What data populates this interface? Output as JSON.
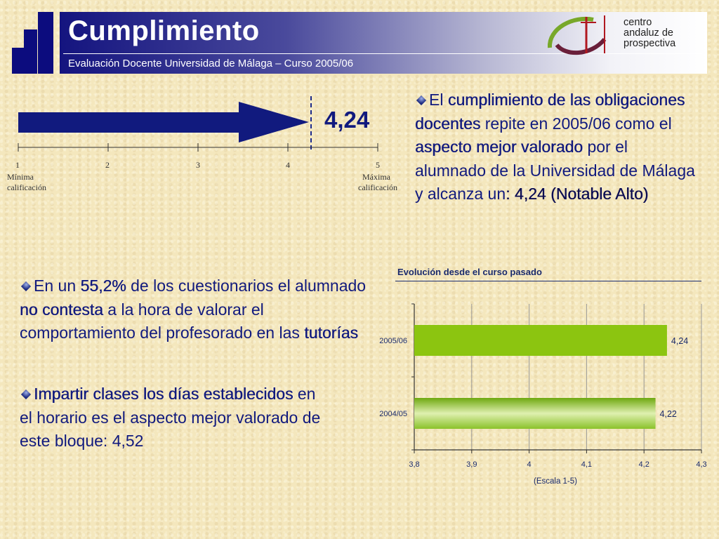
{
  "header": {
    "title": "Cumplimiento",
    "subtitle": "Evaluación Docente Universidad de Málaga – Curso 2005/06",
    "logo_name": "centro-andaluz-de-prospectiva-logo",
    "logo_text": [
      "centro",
      "andaluz de",
      "prospectiva"
    ]
  },
  "scale": {
    "ticks": [
      "1",
      "2",
      "3",
      "4",
      "5"
    ],
    "min_label": [
      "Mínima",
      "calificación"
    ],
    "max_label": [
      "Máxima",
      "calificación"
    ],
    "score": "4,24",
    "score_value": 4.24
  },
  "paragraphs": {
    "right": {
      "t1": "El ",
      "b1": "cumplimiento de las obligaciones docentes",
      "t2": " repite en 2005/06 como el ",
      "b2": "aspecto mejor valorado",
      "t3": " por el alumnado de la Universidad de Málaga y alcanza un",
      "b3": ": 4,24 (Notable Alto)"
    },
    "left1": {
      "t1": "En un ",
      "b1": "55,2%",
      "t2": " de los cuestionarios el alumnado ",
      "b2": "no contesta",
      "t3": " a la hora de valorar el comportamiento del profesorado en las ",
      "b3": "tutorías"
    },
    "left2": {
      "b1": "Impartir clases los días establecidos",
      "t1": " en el horario es el aspecto mejor valorado de este bloque: 4,52"
    }
  },
  "chart_data": {
    "type": "bar",
    "orientation": "horizontal",
    "title": "Evolución desde el curso pasado",
    "xlabel": "(Escala 1-5)",
    "categories": [
      "2005/06",
      "2004/05"
    ],
    "values": [
      4.24,
      4.22
    ],
    "value_labels": [
      "4,24",
      "4,22"
    ],
    "xlim": [
      3.8,
      4.3
    ],
    "xticks": [
      "3,8",
      "3,9",
      "4",
      "4,1",
      "4,2",
      "4,3"
    ],
    "grid": true,
    "colors": [
      "#8cc510",
      "#a9d650"
    ]
  }
}
